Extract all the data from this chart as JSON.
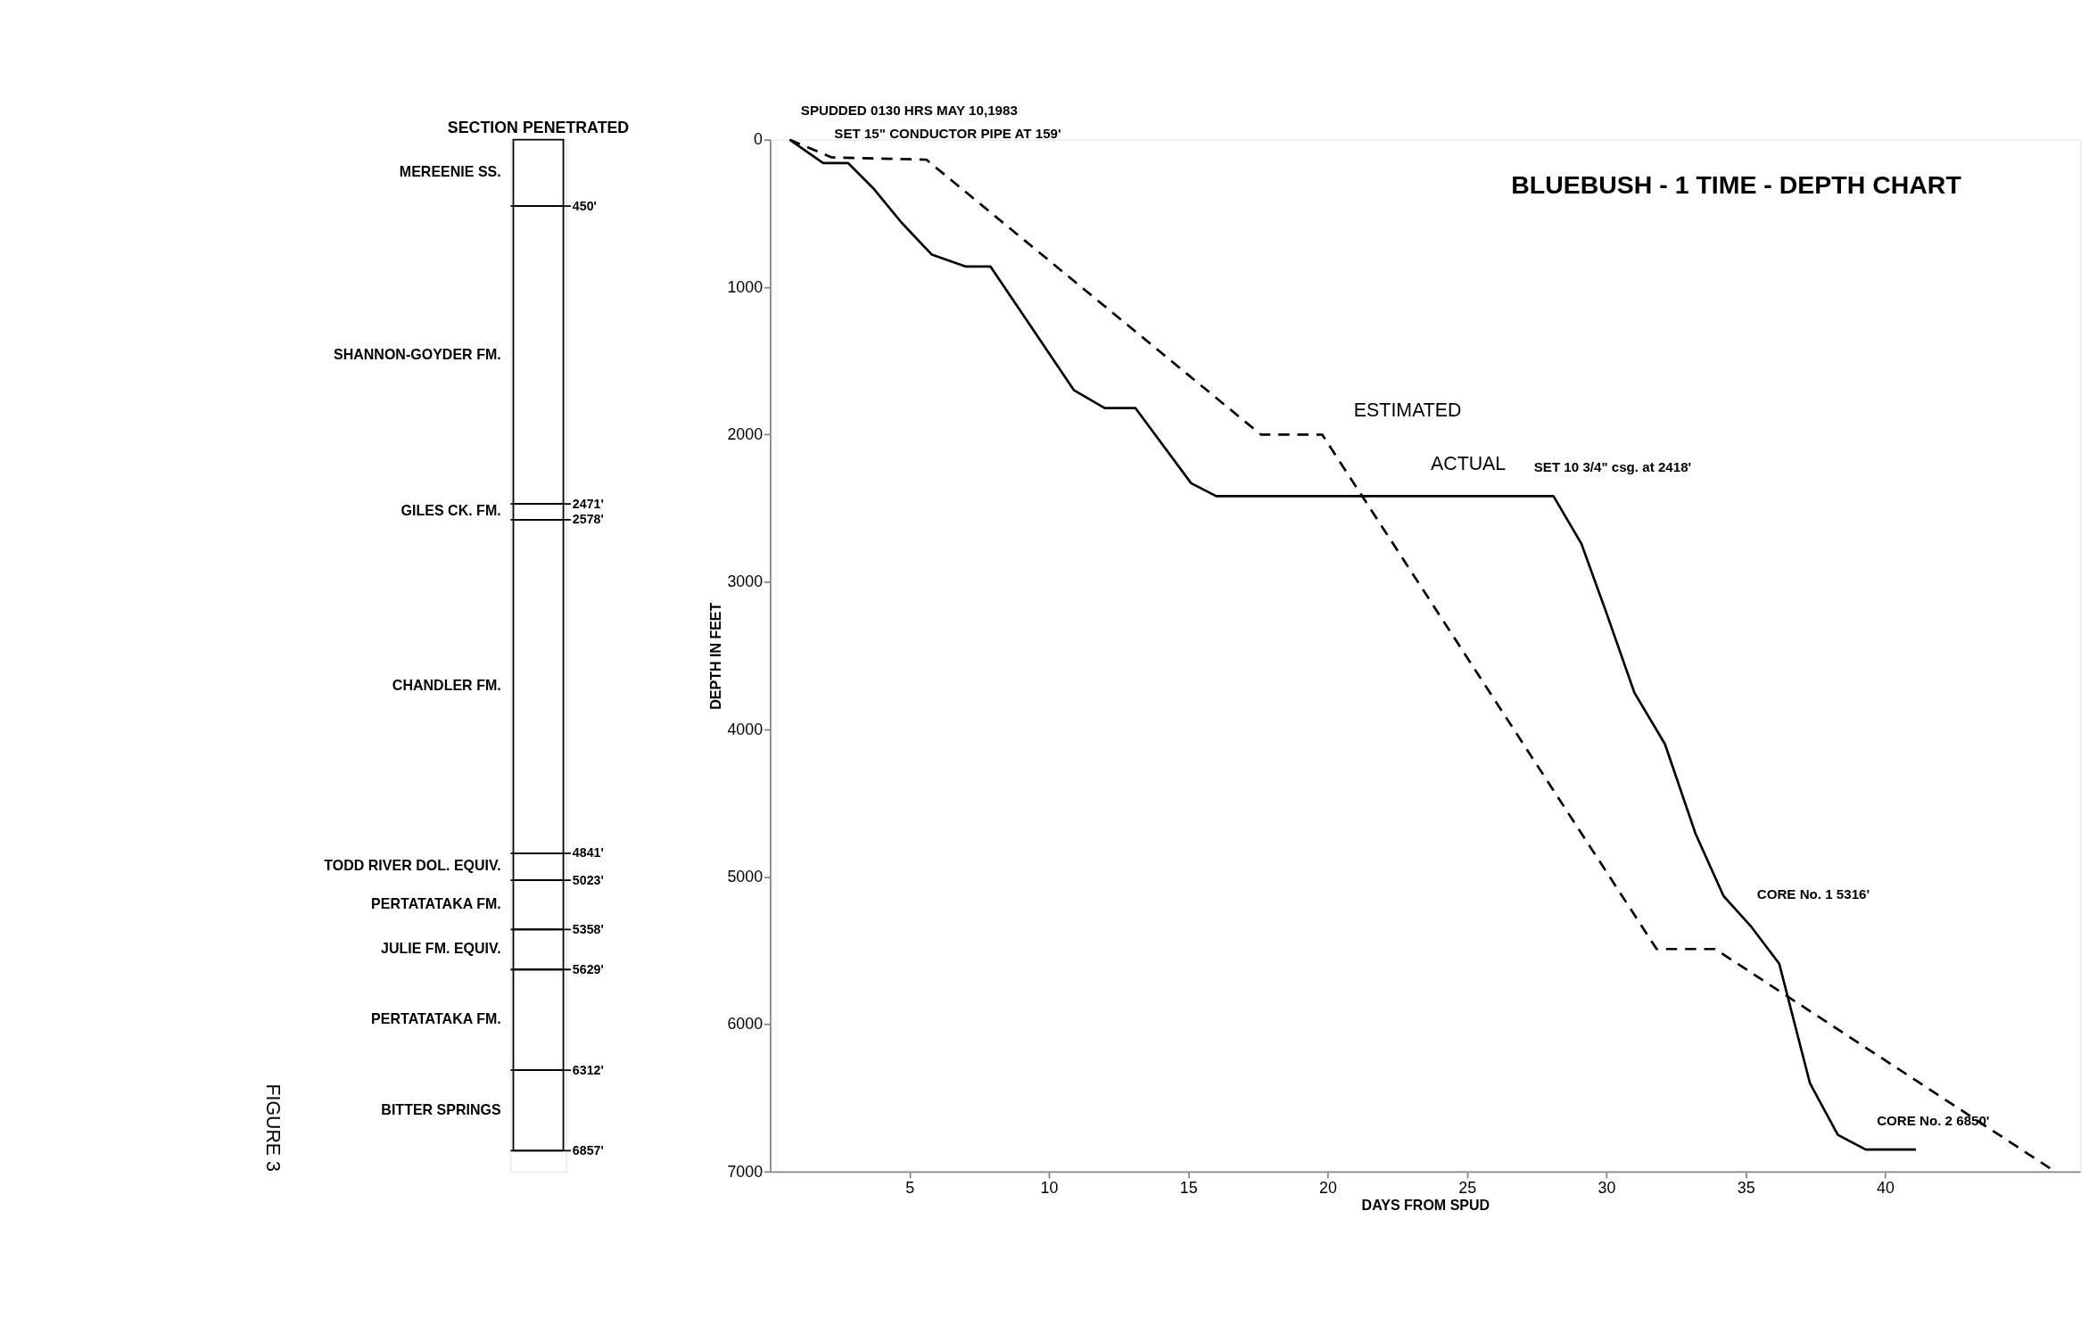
{
  "chart_data": [
    {
      "type": "bar",
      "title": "SECTION PENETRATED",
      "categories": [
        null
      ],
      "ylim": [
        7000,
        0
      ],
      "tick_labels": false,
      "series": [
        {
          "name": "MEREENIE SS.",
          "color": "#ffffff",
          "base": [
            0
          ],
          "values": [
            450
          ]
        },
        {
          "name": "SHANNON-GOYDER FM.",
          "color": "#ffffff",
          "base": [
            450
          ],
          "values": [
            2021
          ]
        },
        {
          "name": "GILES CK. FM.",
          "color": "#ffffff",
          "base": [
            2471
          ],
          "values": [
            107
          ]
        },
        {
          "name": "CHANDLER FM.",
          "color": "#ffffff",
          "base": [
            2578
          ],
          "values": [
            2263
          ]
        },
        {
          "name": "TODD RIVER DOL. EQUIV.",
          "color": "#ffffff",
          "base": [
            4841
          ],
          "values": [
            182
          ]
        },
        {
          "name": "PERTATATAKA FM.",
          "color": "#ffffff",
          "base": [
            5023
          ],
          "values": [
            335
          ]
        },
        {
          "name": "JULIE FM. EQUIV.",
          "color": "#ffffff",
          "base": [
            5358
          ],
          "values": [
            271
          ]
        },
        {
          "name": "PERTATATAKA FM.",
          "color": "#ffffff",
          "base": [
            5629
          ],
          "values": [
            683
          ]
        },
        {
          "name": "BITTER SPRINGS",
          "color": "#ffffff",
          "base": [
            6312
          ],
          "values": [
            545
          ]
        }
      ],
      "ref_lines": [
        {
          "axis": "y",
          "value": 450,
          "label": "450'"
        },
        {
          "axis": "y",
          "value": 2471,
          "label": "2471'"
        },
        {
          "axis": "y",
          "value": 2578,
          "label": "2578'"
        },
        {
          "axis": "y",
          "value": 4841,
          "label": "4841'"
        },
        {
          "axis": "y",
          "value": 5023,
          "label": "5023'"
        },
        {
          "axis": "y",
          "value": 5358,
          "label": "5358'"
        },
        {
          "axis": "y",
          "value": 5629,
          "label": "5629'"
        },
        {
          "axis": "y",
          "value": 6312,
          "label": "6312'"
        },
        {
          "axis": "y",
          "value": 6857,
          "label": "6857'"
        }
      ],
      "annotations": [
        "FIGURE 3"
      ]
    },
    {
      "type": "line",
      "title": "BLUEBUSH - 1   TIME - DEPTH CHART",
      "xlabel": "DAYS FROM SPUD",
      "ylabel": "DEPTH IN FEET",
      "xlim": [
        0,
        47
      ],
      "xticks": [
        5,
        10,
        15,
        20,
        25,
        30,
        35,
        40
      ],
      "ylim": [
        7000,
        0
      ],
      "yticks": [
        0,
        1000,
        2000,
        3000,
        4000,
        5000,
        6000,
        7000
      ],
      "grid": false,
      "marker": "none",
      "series": [
        {
          "name": "ACTUAL",
          "color": "#000000",
          "line_style": "solid",
          "x": [
            0.7,
            1.9,
            2.8,
            3.7,
            4.7,
            5.8,
            7,
            7.9,
            10.9,
            12,
            13.1,
            15.1,
            16,
            28.1,
            29.1,
            30,
            31,
            32.1,
            33.2,
            34.2,
            35.2,
            36.2,
            37.3,
            38.3,
            39.3,
            41.1
          ],
          "values": [
            0,
            159,
            159,
            330,
            560,
            780,
            860,
            860,
            1700,
            1820,
            1820,
            2330,
            2418,
            2418,
            2740,
            3210,
            3750,
            4100,
            4710,
            5130,
            5340,
            5590,
            6400,
            6750,
            6850,
            6850
          ]
        },
        {
          "name": "ESTIMATED",
          "color": "#000000",
          "line_style": "dashed",
          "x": [
            0.7,
            2.2,
            5.6,
            17.6,
            19.8,
            31.8,
            33.9,
            46.1
          ],
          "values": [
            0,
            120,
            135,
            2000,
            2000,
            5490,
            5490,
            7000
          ]
        }
      ],
      "annotations": [
        {
          "text": "SPUDDED 0130 HRS MAY 10,1983",
          "x": 0.7,
          "y": 0
        },
        {
          "text": "SET 15\" CONDUCTOR PIPE AT 159'",
          "x": 1.9,
          "y": 159
        },
        {
          "text": "SET 10 3/4\" csg. at 2418'",
          "x": 27,
          "y": 2418
        },
        {
          "text": "CORE No. 1 5316'",
          "x": 35,
          "y": 5316
        },
        {
          "text": "CORE No. 2 6850'",
          "x": 39.3,
          "y": 6850
        }
      ]
    }
  ]
}
